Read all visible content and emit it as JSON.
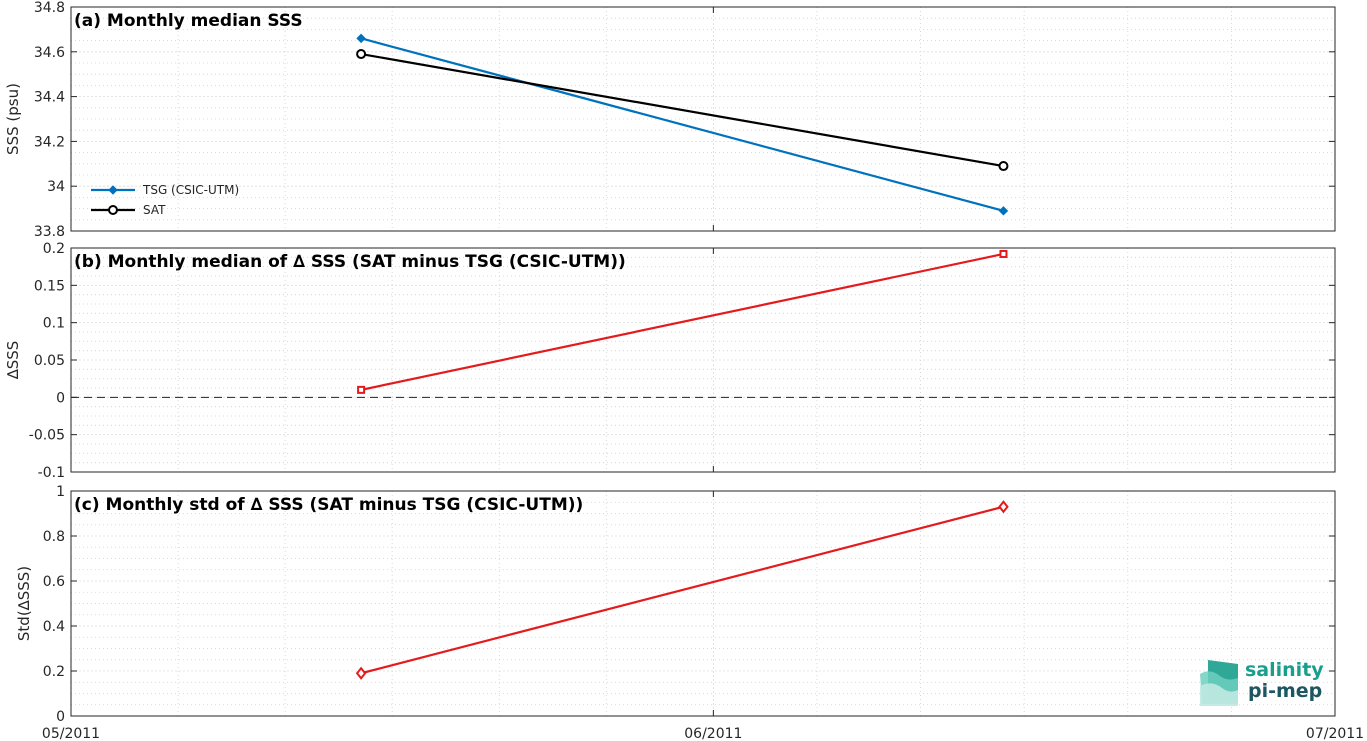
{
  "chart_data": [
    {
      "type": "line",
      "title": "(a) Monthly median SSS",
      "ylabel": "SSS (psu)",
      "ylim": [
        33.8,
        34.8
      ],
      "yticks": [
        33.8,
        34,
        34.2,
        34.4,
        34.6,
        34.8
      ],
      "ytick_labels": [
        "33.8",
        "34",
        "34.2",
        "34.4",
        "34.6",
        "34.8"
      ],
      "x": [
        "2011-05-15",
        "2011-06-15"
      ],
      "series": [
        {
          "name": "TSG (CSIC-UTM)",
          "values": [
            34.66,
            33.89
          ],
          "color": "#0072BD",
          "marker": "diamond-filled"
        },
        {
          "name": "SAT",
          "values": [
            34.59,
            34.09
          ],
          "color": "#000000",
          "marker": "circle-open"
        }
      ],
      "legend_position": "lower-left",
      "grid": true
    },
    {
      "type": "line",
      "title": "(b) Monthly median of ∆ SSS (SAT minus TSG (CSIC-UTM))",
      "ylabel": "∆SSS",
      "ylim": [
        -0.1,
        0.2
      ],
      "yticks": [
        -0.1,
        -0.05,
        0,
        0.05,
        0.1,
        0.15,
        0.2
      ],
      "ytick_labels": [
        "-0.1",
        "-0.05",
        "0",
        "0.05",
        "0.1",
        "0.15",
        "0.2"
      ],
      "x": [
        "2011-05-15",
        "2011-06-15"
      ],
      "series": [
        {
          "values": [
            0.01,
            0.192
          ],
          "color": "#E41A1C",
          "marker": "square-open"
        }
      ],
      "reference_line": {
        "y": 0,
        "style": "dashed"
      },
      "grid": true
    },
    {
      "type": "line",
      "title": "(c) Monthly std of ∆ SSS (SAT minus TSG (CSIC-UTM))",
      "ylabel": "Std(∆SSS)",
      "ylim": [
        0,
        1
      ],
      "yticks": [
        0,
        0.2,
        0.4,
        0.6,
        0.8,
        1
      ],
      "ytick_labels": [
        "0",
        "0.2",
        "0.4",
        "0.6",
        "0.8",
        "1"
      ],
      "x": [
        "2011-05-15",
        "2011-06-15"
      ],
      "series": [
        {
          "values": [
            0.19,
            0.93
          ],
          "color": "#E41A1C",
          "marker": "diamond-open"
        }
      ],
      "grid": true
    }
  ],
  "x_axis": {
    "range": [
      "2011-05-01",
      "2011-07-01"
    ],
    "ticks": [
      "2011-05-01",
      "2011-06-01",
      "2011-07-01"
    ],
    "tick_labels": [
      "05/2011",
      "06/2011",
      "07/2011"
    ]
  },
  "logo": {
    "line1": "salinity",
    "line2": "pi-mep",
    "color1": "#1a9e8c",
    "color2": "#1d5560"
  }
}
